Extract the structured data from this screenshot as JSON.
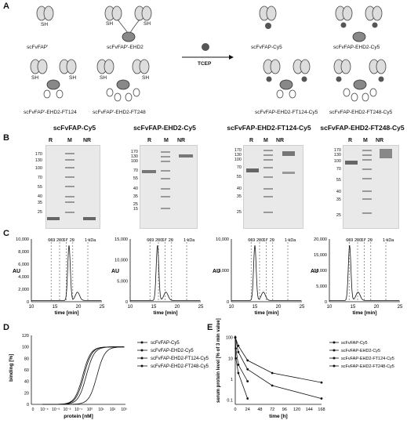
{
  "panels": {
    "a": "A",
    "b": "B",
    "c": "C",
    "d": "D",
    "e": "E"
  },
  "panel_a": {
    "left_constructs": [
      {
        "label": "scFvFAP'",
        "sh": [
          "SH"
        ]
      },
      {
        "label": "scFvFAP'-EHD2",
        "sh": [
          "SH",
          "SH"
        ]
      },
      {
        "label": "scFvFAP'-EHD2-FT124",
        "sh": [
          "SH",
          "SH"
        ]
      },
      {
        "label": "scFvFAP'-EHD2-FT248",
        "sh": [
          "SH",
          "SH"
        ]
      }
    ],
    "right_constructs": [
      {
        "label": "scFvFAP-Cy5"
      },
      {
        "label": "scFvFAP-EHD2-Cy5"
      },
      {
        "label": "scFvFAP-EHD2-FT124-Cy5"
      },
      {
        "label": "scFvFAP-EHD2-FT248-Cy5"
      }
    ],
    "reagent": "TCEP"
  },
  "panel_b": {
    "gels": [
      {
        "title": "scFvFAP-Cy5",
        "lanes": [
          "R",
          "M",
          "NR"
        ],
        "markers": [
          "170",
          "130",
          "100",
          "70",
          "55",
          "40",
          "35",
          "25",
          "15"
        ]
      },
      {
        "title": "scFvFAP-EHD2-Cy5",
        "lanes": [
          "R",
          "M",
          "NR"
        ],
        "markers": [
          "170",
          "130",
          "100",
          "70",
          "55",
          "40",
          "35",
          "25",
          "15"
        ]
      },
      {
        "title": "scFvFAP-EHD2-FT124-Cy5",
        "lanes": [
          "R",
          "M",
          "NR"
        ],
        "markers": [
          "170",
          "130",
          "100",
          "70",
          "55",
          "40",
          "35",
          "25"
        ]
      },
      {
        "title": "scFvFAP-EHD2-FT248-Cy5",
        "lanes": [
          "R",
          "M",
          "NR"
        ],
        "markers": [
          "170",
          "130",
          "100",
          "70",
          "55",
          "40",
          "35",
          "25"
        ]
      }
    ]
  },
  "chart_data": [
    {
      "type": "line",
      "panel": "C1",
      "ylabel": "AU",
      "xlabel": "time [min]",
      "xlim": [
        10,
        25
      ],
      "ylim": [
        0,
        10000
      ],
      "xticks": [
        "10",
        "15",
        "20",
        "25"
      ],
      "yticks": [
        "0",
        "2,000",
        "4,000",
        "6,000",
        "8,000",
        "10,000"
      ],
      "markers": [
        "669",
        "200",
        "67",
        "29",
        "1 kDa"
      ],
      "peak_x": 18.0
    },
    {
      "type": "line",
      "panel": "C2",
      "ylabel": "AU",
      "xlabel": "time [min]",
      "xlim": [
        10,
        25
      ],
      "ylim": [
        0,
        15000
      ],
      "xticks": [
        "10",
        "15",
        "20",
        "25"
      ],
      "yticks": [
        "0",
        "5,000",
        "10,000",
        "15,000"
      ],
      "markers": [
        "669",
        "200",
        "67",
        "29",
        "1 kDa"
      ],
      "peak_x": 15.8
    },
    {
      "type": "line",
      "panel": "C3",
      "ylabel": "AU",
      "xlabel": "time [min]",
      "xlim": [
        10,
        25
      ],
      "ylim": [
        0,
        10000
      ],
      "xticks": [
        "10",
        "15",
        "20",
        "25"
      ],
      "yticks": [
        "0",
        "5,000",
        "10,000"
      ],
      "markers": [
        "669",
        "200",
        "67",
        "29",
        "1 kDa"
      ],
      "peak_x": 15.0
    },
    {
      "type": "line",
      "panel": "C4",
      "ylabel": "AU",
      "xlabel": "time [min]",
      "xlim": [
        10,
        25
      ],
      "ylim": [
        0,
        20000
      ],
      "xticks": [
        "10",
        "15",
        "20",
        "25"
      ],
      "yticks": [
        "0",
        "5,000",
        "10,000",
        "15,000",
        "20,000"
      ],
      "markers": [
        "669",
        "200",
        "67",
        "29",
        "1 kDa"
      ],
      "peak_x": 14.3
    },
    {
      "type": "line",
      "panel": "D",
      "ylabel": "binding [%]",
      "xlabel": "protein [nM]",
      "ylim": [
        0,
        120
      ],
      "yticks": [
        "0",
        "20",
        "40",
        "60",
        "80",
        "100",
        "120"
      ],
      "xticks": [
        "0",
        "10⁻⁴",
        "10⁻³",
        "10⁻²",
        "10⁻¹",
        "10⁰",
        "10¹",
        "10²",
        "10³"
      ],
      "series": [
        {
          "name": "scFvFAP-Cy5",
          "ec50_log": 0.6
        },
        {
          "name": "scFvFAP-EHD2-Cy5",
          "ec50_log": -0.6
        },
        {
          "name": "scFvFAP-EHD2-FT124-Cy5",
          "ec50_log": -0.5
        },
        {
          "name": "scFvFAP-EHD2-FT248-Cy5",
          "ec50_log": -0.3
        }
      ]
    },
    {
      "type": "line",
      "panel": "E",
      "ylabel": "serum protein level [% of 3 min value]",
      "xlabel": "time [h]",
      "xticks": [
        "0",
        "24",
        "48",
        "72",
        "96",
        "120",
        "144",
        "168"
      ],
      "yticks": [
        "0.1",
        "1",
        "10",
        "100"
      ],
      "series": [
        {
          "name": "scFvFAP-Cy5",
          "x": [
            0.05,
            1,
            6,
            24
          ],
          "y": [
            100,
            10,
            2,
            0.12
          ]
        },
        {
          "name": "scFvFAP-EHD2-Cy5",
          "x": [
            0.05,
            1,
            6,
            24
          ],
          "y": [
            100,
            30,
            5,
            0.8
          ]
        },
        {
          "name": "scFvFAP-EHD2-FT124-Cy5",
          "x": [
            0.05,
            6,
            24,
            72,
            168
          ],
          "y": [
            100,
            40,
            8,
            2.0,
            0.7
          ]
        },
        {
          "name": "scFvFAP-EHD2-FT248-Cy5",
          "x": [
            0.05,
            6,
            24,
            72,
            168
          ],
          "y": [
            100,
            20,
            3,
            0.5,
            0.12
          ]
        }
      ]
    }
  ]
}
